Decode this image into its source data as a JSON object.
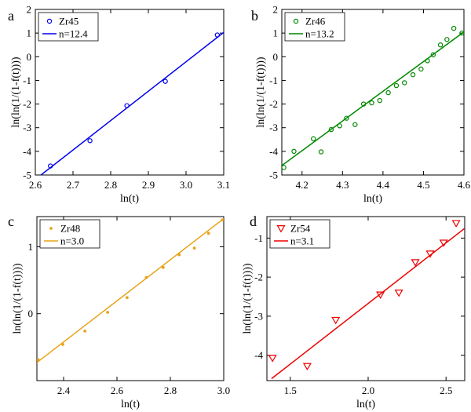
{
  "chart_data": [
    {
      "type": "scatter",
      "panel_label": "a",
      "xlabel": "ln(t)",
      "ylabel": "ln(ln(1/(1-f(t))))",
      "xlim": [
        2.6,
        3.1
      ],
      "ylim": [
        -5,
        2
      ],
      "xticks": [
        2.6,
        2.7,
        2.8,
        2.9,
        3.0,
        3.1
      ],
      "xtick_labels": [
        "2.6",
        "2.7",
        "2.8",
        "2.9",
        "3.0",
        "3.1"
      ],
      "yticks": [
        -5,
        -4,
        -3,
        -2,
        -1,
        0,
        1,
        2
      ],
      "ytick_labels": [
        "-5",
        "-4",
        "-3",
        "-2",
        "-1",
        "0",
        "1",
        "2"
      ],
      "color": "#0000ee",
      "marker": "circle",
      "legend": {
        "position": "top-left",
        "series_label": "Zr45",
        "fit_label": "n=12.4"
      },
      "series": [
        {
          "name": "Zr45",
          "x": [
            2.64,
            2.745,
            2.843,
            2.945,
            3.083
          ],
          "y": [
            -4.62,
            -3.55,
            -2.07,
            -1.04,
            0.92
          ]
        }
      ],
      "fit": {
        "x": [
          2.615,
          3.1
        ],
        "y": [
          -5.0,
          1.03
        ]
      }
    },
    {
      "type": "scatter",
      "panel_label": "b",
      "xlabel": "ln(t)",
      "ylabel": "ln(ln(1/(1-f(t))))",
      "xlim": [
        4.15,
        4.6
      ],
      "ylim": [
        -5,
        2
      ],
      "xticks": [
        4.2,
        4.3,
        4.4,
        4.5,
        4.6
      ],
      "xtick_labels": [
        "4.2",
        "4.3",
        "4.4",
        "4.5",
        "4.6"
      ],
      "yticks": [
        -5,
        -4,
        -3,
        -2,
        -1,
        0,
        1,
        2
      ],
      "ytick_labels": [
        "-5",
        "-4",
        "-3",
        "-2",
        "-1",
        "0",
        "1",
        "2"
      ],
      "color": "#008800",
      "marker": "circle",
      "legend": {
        "position": "top-left",
        "series_label": "Zr46",
        "fit_label": "n=13.2"
      },
      "series": [
        {
          "name": "Zr46",
          "x": [
            4.155,
            4.18,
            4.228,
            4.247,
            4.272,
            4.293,
            4.31,
            4.331,
            4.352,
            4.372,
            4.392,
            4.413,
            4.433,
            4.453,
            4.474,
            4.494,
            4.51,
            4.524,
            4.542,
            4.558,
            4.575,
            4.595
          ],
          "y": [
            -4.68,
            -4.0,
            -3.47,
            -4.02,
            -3.08,
            -2.92,
            -2.6,
            -2.87,
            -2.0,
            -1.95,
            -1.85,
            -1.52,
            -1.22,
            -1.1,
            -0.76,
            -0.52,
            -0.17,
            0.08,
            0.5,
            0.73,
            1.2,
            1.0
          ]
        }
      ],
      "fit": {
        "x": [
          4.15,
          4.6
        ],
        "y": [
          -4.6,
          1.05
        ]
      }
    },
    {
      "type": "scatter",
      "panel_label": "c",
      "xlabel": "ln(t)",
      "ylabel": "ln(ln(1/(1-f(t))))",
      "xlim": [
        2.3,
        3.0
      ],
      "ylim": [
        -1.0,
        1.45
      ],
      "xticks": [
        2.4,
        2.6,
        2.8,
        3.0
      ],
      "xtick_labels": [
        "2.4",
        "2.6",
        "2.8",
        "3.0"
      ],
      "yticks": [
        0,
        1
      ],
      "ytick_labels": [
        "0",
        "1"
      ],
      "color": "#e8a317",
      "marker": "dot",
      "legend": {
        "position": "top-left",
        "series_label": "Zr48",
        "fit_label": "n=3.0"
      },
      "series": [
        {
          "name": "Zr48",
          "x": [
            2.305,
            2.397,
            2.48,
            2.565,
            2.638,
            2.71,
            2.773,
            2.833,
            2.89,
            2.943,
            2.995
          ],
          "y": [
            -0.69,
            -0.46,
            -0.26,
            0.02,
            0.24,
            0.54,
            0.69,
            0.88,
            0.98,
            1.2,
            1.4
          ]
        }
      ],
      "fit": {
        "x": [
          2.3,
          3.0
        ],
        "y": [
          -0.73,
          1.42
        ]
      }
    },
    {
      "type": "scatter",
      "panel_label": "d",
      "xlabel": "ln(t)",
      "ylabel": "ln(ln(1/(1-f(t))))",
      "xlim": [
        1.35,
        2.62
      ],
      "ylim": [
        -4.65,
        -0.45
      ],
      "xticks": [
        1.5,
        2.0,
        2.5
      ],
      "xtick_labels": [
        "1.5",
        "2.0",
        "2.5"
      ],
      "yticks": [
        -4,
        -3,
        -2,
        -1
      ],
      "ytick_labels": [
        "-4",
        "-3",
        "-2",
        "-1"
      ],
      "color": "#ee0000",
      "marker": "triangle-down",
      "legend": {
        "position": "top-left",
        "series_label": "Zr54",
        "fit_label": "n=3.1"
      },
      "series": [
        {
          "name": "Zr54",
          "x": [
            1.386,
            1.609,
            1.792,
            2.079,
            2.197,
            2.303,
            2.398,
            2.485,
            2.565
          ],
          "y": [
            -4.07,
            -4.28,
            -3.1,
            -2.45,
            -2.4,
            -1.62,
            -1.4,
            -1.12,
            -0.62
          ]
        }
      ],
      "fit": {
        "x": [
          1.38,
          2.62
        ],
        "y": [
          -4.6,
          -0.75
        ]
      }
    }
  ]
}
